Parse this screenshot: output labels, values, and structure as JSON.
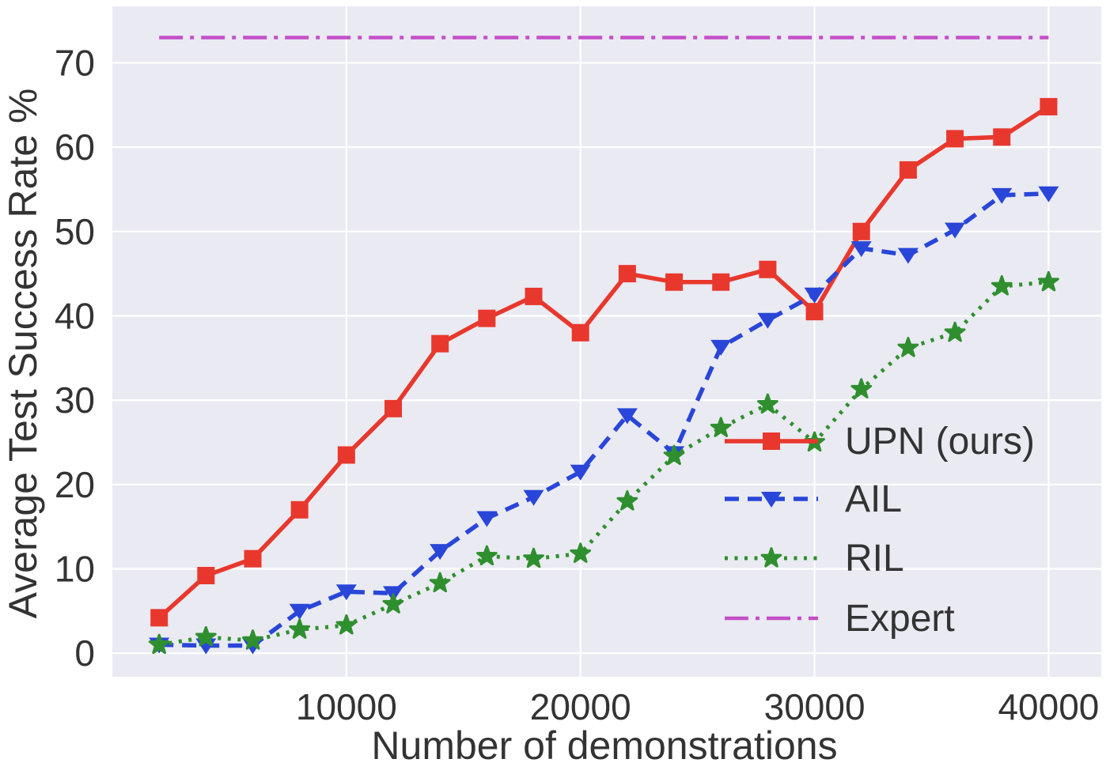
{
  "chart_data": {
    "type": "line",
    "title": "",
    "xlabel": "Number of demonstrations",
    "ylabel": "Average Test Success Rate %",
    "x": [
      2000,
      4000,
      6000,
      8000,
      10000,
      12000,
      14000,
      16000,
      18000,
      20000,
      22000,
      24000,
      26000,
      28000,
      30000,
      32000,
      34000,
      36000,
      38000,
      40000
    ],
    "series": [
      {
        "name": "UPN (ours)",
        "color": "#e8382d",
        "line": "solid",
        "marker": "square",
        "values": [
          4.2,
          9.2,
          11.2,
          17,
          23.5,
          29,
          36.7,
          39.7,
          42.3,
          38,
          45,
          44,
          44,
          45.5,
          40.5,
          50,
          57.3,
          61,
          61.2,
          64.8
        ]
      },
      {
        "name": "AIL",
        "color": "#2946d9",
        "line": "dashed",
        "marker": "triangle-down",
        "values": [
          1,
          0.9,
          0.9,
          5,
          7.3,
          7.1,
          12.1,
          16,
          18.5,
          21.5,
          28.2,
          23.7,
          36.3,
          39.5,
          42.5,
          48,
          47.2,
          50.2,
          54.3,
          54.5
        ]
      },
      {
        "name": "RIL",
        "color": "#2f8f2f",
        "line": "dotted",
        "marker": "star",
        "values": [
          1,
          1.9,
          1.5,
          2.8,
          3.3,
          5.8,
          8.3,
          11.5,
          11.2,
          11.8,
          18,
          23.4,
          26.7,
          29.5,
          25,
          31.3,
          36.2,
          38,
          43.5,
          44
        ]
      },
      {
        "name": "Expert",
        "color": "#c44fc8",
        "line": "dashdot",
        "marker": "none",
        "constant_value": 73
      }
    ],
    "xticks": {
      "values": [
        10000,
        20000,
        30000,
        40000
      ],
      "labels": [
        "10000",
        "20000",
        "30000",
        "40000"
      ]
    },
    "yticks": {
      "values": [
        0,
        10,
        20,
        30,
        40,
        50,
        60,
        70
      ],
      "labels": [
        "0",
        "10",
        "20",
        "30",
        "40",
        "50",
        "60",
        "70"
      ]
    },
    "xlim": [
      0,
      42250
    ],
    "ylim": [
      -2.8,
      76.7
    ],
    "grid": true,
    "legend_position": "lower right",
    "legend_frame": false,
    "plot_background": "#eaeaf2",
    "grid_color": "#ffffff",
    "text_color": "#333333"
  }
}
